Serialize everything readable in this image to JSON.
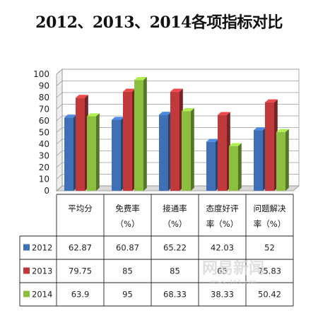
{
  "chart_data": {
    "type": "bar",
    "title": "2012、2013、2014各项指标对比",
    "categories": [
      [
        "平均分"
      ],
      [
        "免费率",
        "（%）"
      ],
      [
        "接通率",
        "（%）"
      ],
      [
        "态度好评",
        "率（%）"
      ],
      [
        "问题解决",
        "率（%）"
      ]
    ],
    "series": [
      {
        "name": "2012",
        "color": "#3f6fb5",
        "values": [
          62.87,
          60.87,
          65.22,
          42.03,
          52
        ],
        "labels": [
          "62.87",
          "60.87",
          "65.22",
          "42.03",
          "52"
        ]
      },
      {
        "name": "2013",
        "color": "#c0393b",
        "values": [
          79.75,
          85,
          85,
          65,
          75.83
        ],
        "labels": [
          "79.75",
          "85",
          "85",
          "65",
          "75.83"
        ]
      },
      {
        "name": "2014",
        "color": "#8cbf3f",
        "values": [
          63.9,
          95,
          68.33,
          38.33,
          50.42
        ],
        "labels": [
          "63.9",
          "95",
          "68.33",
          "38.33",
          "50.42"
        ]
      }
    ],
    "ylim": [
      0,
      100
    ],
    "yticks": [
      0,
      10,
      20,
      30,
      40,
      50,
      60,
      70,
      80,
      90,
      100
    ],
    "grid": true,
    "three_d": true,
    "data_table": true
  },
  "watermark": {
    "text": "网易新闻",
    "sub": "news.163.com"
  }
}
